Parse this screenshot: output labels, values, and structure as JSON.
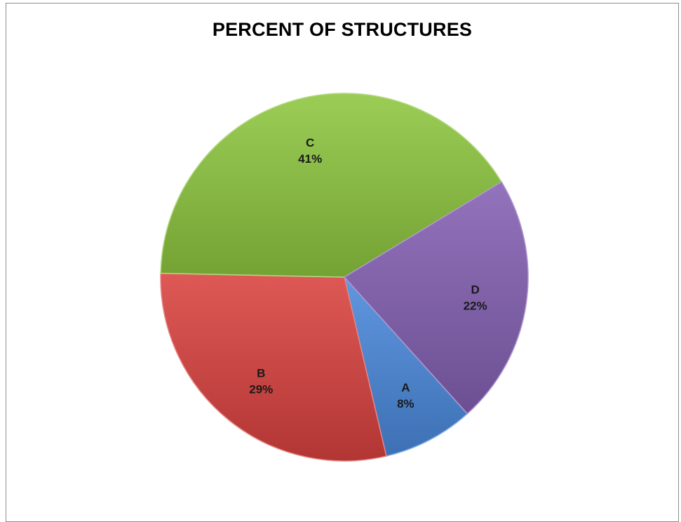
{
  "chart_data": {
    "type": "pie",
    "title": "PERCENT OF STRUCTURES",
    "slices": [
      {
        "label": "A",
        "value": 8,
        "value_text": "8%",
        "color": "#4a89dc"
      },
      {
        "label": "B",
        "value": 29,
        "value_text": "29%",
        "color": "#d9423f"
      },
      {
        "label": "C",
        "value": 41,
        "value_text": "41%",
        "color": "#8dc63f"
      },
      {
        "label": "D",
        "value": 22,
        "value_text": "22%",
        "color": "#8460b3"
      }
    ],
    "legend": "none",
    "data_labels": "category and percentage"
  }
}
